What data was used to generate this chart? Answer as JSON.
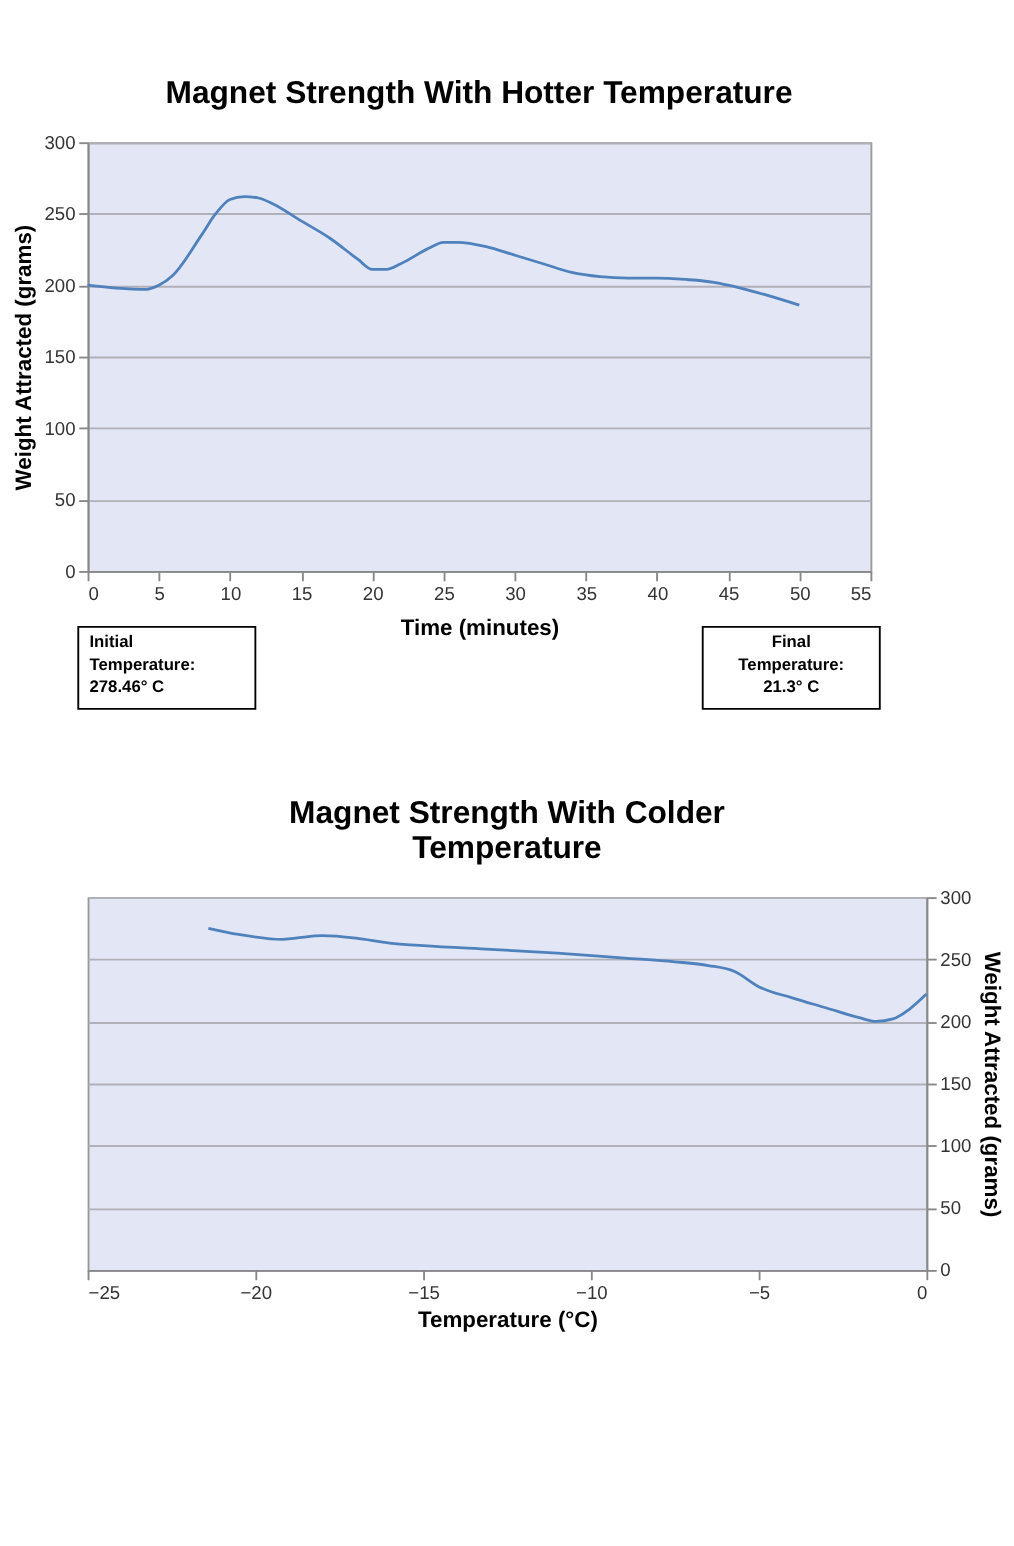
{
  "chart_data": [
    {
      "type": "line",
      "title": "Magnet Strength With Hotter Temperature",
      "xlabel": "Time (minutes)",
      "ylabel": "Weight Attracted (grams)",
      "x": [
        0,
        2,
        4,
        5,
        6,
        8,
        9,
        10,
        11,
        12,
        13,
        15,
        17,
        19,
        20,
        21,
        22,
        24,
        25,
        26,
        28,
        30,
        32,
        34,
        36,
        38,
        40,
        42,
        44,
        45,
        47,
        50
      ],
      "series": [
        {
          "color": "#4f81bd",
          "values": [
            200,
            198,
            197,
            200,
            207,
            235,
            250,
            260,
            262,
            261,
            257,
            245,
            233,
            218,
            211,
            211,
            215,
            226,
            230,
            230,
            227,
            221,
            215,
            209,
            206,
            205,
            205,
            204,
            202,
            200,
            195,
            186
          ]
        }
      ],
      "xlim": [
        0,
        55
      ],
      "xticks": [
        0,
        5,
        10,
        15,
        20,
        25,
        30,
        35,
        40,
        45,
        50,
        55
      ],
      "ylim": [
        0,
        300
      ],
      "yticks": [
        0,
        50,
        100,
        150,
        200,
        250,
        300
      ],
      "grid": "y",
      "legend": false,
      "marker": "none",
      "line_style": "solid",
      "annotations": [
        "Initial Temperature: 278.46° C",
        "Final Temperature: 21.3° C"
      ]
    },
    {
      "type": "line",
      "title": "Magnet Strength With Colder Temperature",
      "xlabel": "Temperature (°C)",
      "ylabel": "Weight Attracted (grams)",
      "x": [
        -21.4,
        -20.5,
        -19.2,
        -18.8,
        -18,
        -17,
        -16,
        -15,
        -13,
        -11,
        -9,
        -7.5,
        -6.5,
        -5.7,
        -5,
        -4,
        -3,
        -2,
        -1.5,
        -1,
        -0.5,
        0
      ],
      "series": [
        {
          "color": "#4f81bd",
          "values": [
            275,
            270,
            266,
            267,
            269,
            267,
            263,
            261,
            258,
            255,
            251,
            248,
            245,
            240,
            228,
            219,
            211,
            203,
            200,
            202,
            210,
            222
          ]
        }
      ],
      "xlim": [
        -25,
        0
      ],
      "xticks": [
        -25,
        -20,
        -15,
        -10,
        -5,
        0
      ],
      "ylim": [
        0,
        300
      ],
      "yticks": [
        0,
        50,
        100,
        150,
        200,
        250,
        300
      ],
      "grid": "y",
      "legend": false,
      "marker": "none",
      "line_style": "solid"
    }
  ]
}
